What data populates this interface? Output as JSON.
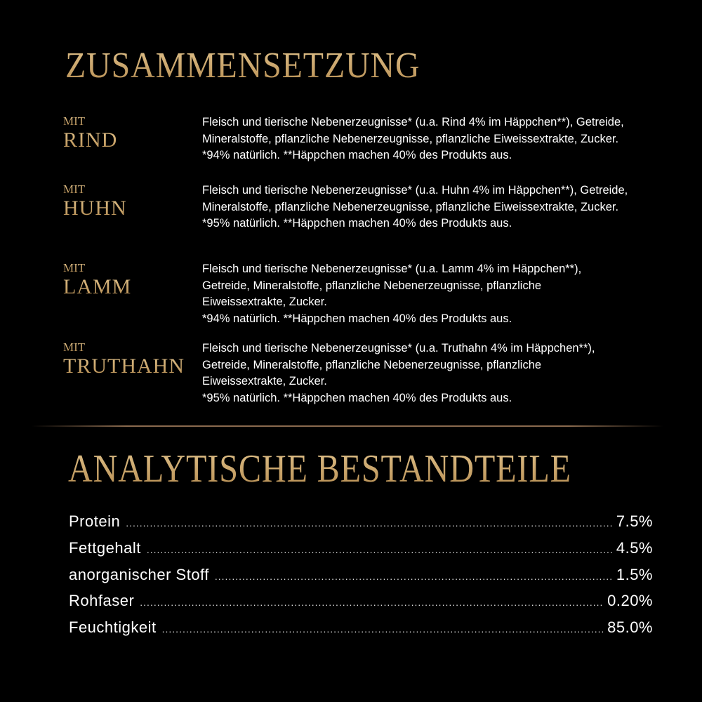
{
  "composition": {
    "title": "ZUSAMMENSETZUNG",
    "variants": [
      {
        "prefix": "MIT",
        "name": "RIND",
        "lines": [
          "Fleisch und tierische Nebenerzeugnisse* (u.a. Rind 4% im Häppchen**), Getreide,",
          "Mineralstoffe, pflanzliche Nebenerzeugnisse, pflanzliche Eiweissextrakte, Zucker.",
          "*94% natürlich. **Häppchen machen 40% des Produkts aus."
        ]
      },
      {
        "prefix": "MIT",
        "name": "HUHN",
        "lines": [
          "Fleisch und tierische Nebenerzeugnisse* (u.a. Huhn 4% im Häppchen**), Getreide,",
          "Mineralstoffe, pflanzliche Nebenerzeugnisse, pflanzliche Eiweissextrakte, Zucker.",
          "*95% natürlich. **Häppchen machen 40% des Produkts aus."
        ]
      },
      {
        "prefix": "MIT",
        "name": "LAMM",
        "lines": [
          "Fleisch und tierische Nebenerzeugnisse* (u.a. Lamm 4% im Häppchen**),",
          "Getreide, Mineralstoffe, pflanzliche Nebenerzeugnisse, pflanzliche",
          "Eiweissextrakte, Zucker.",
          "*94% natürlich. **Häppchen machen 40% des Produkts aus."
        ]
      },
      {
        "prefix": "MIT",
        "name": "TRUTHAHN",
        "lines": [
          "Fleisch und tierische Nebenerzeugnisse* (u.a. Truthahn 4% im Häppchen**),",
          "Getreide, Mineralstoffe, pflanzliche Nebenerzeugnisse, pflanzliche",
          "Eiweissextrakte, Zucker.",
          "*95% natürlich. **Häppchen machen 40% des Produkts aus."
        ]
      }
    ]
  },
  "analysis": {
    "title": "ANALYTISCHE BESTANDTEILE",
    "rows": [
      {
        "label": "Protein",
        "value": "7.5%"
      },
      {
        "label": "Fettgehalt",
        "value": "4.5%"
      },
      {
        "label": "anorganischer Stoff",
        "value": "1.5%"
      },
      {
        "label": "Rohfaser",
        "value": "0.20%"
      },
      {
        "label": "Feuchtigkeit",
        "value": "85.0%"
      }
    ]
  },
  "colors": {
    "background": "#000000",
    "gold": "#c9a66b",
    "text": "#ffffff",
    "divider": "#8a6a4e"
  }
}
